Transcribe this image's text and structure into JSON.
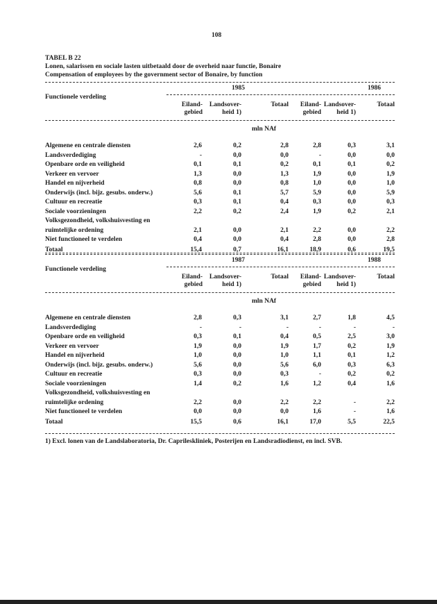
{
  "page_number": "108",
  "table_id": "TABEL B 22",
  "title_nl": "Lonen, salarissen en sociale lasten uitbetaald door de overheid naar functie, Bonaire",
  "title_en": "Compensation of employees by the government sector of Bonaire, by function",
  "row_header": "Functionele verdeling",
  "unit": "mln NAf",
  "col_headers": [
    "Eiland-",
    "gebied",
    "Landsover-",
    "heid 1)",
    "Totaal"
  ],
  "sections": [
    {
      "years": [
        "1985",
        "1986"
      ],
      "rows": [
        {
          "label": "Algemene en centrale diensten",
          "v": [
            "2,6",
            "0,2",
            "2,8",
            "2,8",
            "0,3",
            "3,1"
          ]
        },
        {
          "label": "Landsverdediging",
          "v": [
            "-",
            "0,0",
            "0,0",
            "-",
            "0,0",
            "0,0"
          ]
        },
        {
          "label": "Openbare orde en veiligheid",
          "v": [
            "0,1",
            "0,1",
            "0,2",
            "0,1",
            "0,1",
            "0,2"
          ]
        },
        {
          "label": "Verkeer en vervoer",
          "v": [
            "1,3",
            "0,0",
            "1,3",
            "1,9",
            "0,0",
            "1,9"
          ]
        },
        {
          "label": "Handel en nijverheid",
          "v": [
            "0,8",
            "0,0",
            "0,8",
            "1,0",
            "0,0",
            "1,0"
          ]
        },
        {
          "label": "Onderwijs (incl. bijz. gesubs. onderw.)",
          "v": [
            "5,6",
            "0,1",
            "5,7",
            "5,9",
            "0,0",
            "5,9"
          ]
        },
        {
          "label": "Cultuur en recreatie",
          "v": [
            "0,3",
            "0,1",
            "0,4",
            "0,3",
            "0,0",
            "0,3"
          ]
        },
        {
          "label": "Sociale voorzieningen",
          "v": [
            "2,2",
            "0,2",
            "2,4",
            "1,9",
            "0,2",
            "2,1"
          ]
        },
        {
          "label": "Volksgezondheid, volkshuisvesting en",
          "v": [
            "",
            "",
            "",
            "",
            "",
            ""
          ]
        },
        {
          "label": "ruimtelijke ordening",
          "v": [
            "2,1",
            "0,0",
            "2,1",
            "2,2",
            "0,0",
            "2,2"
          ]
        },
        {
          "label": "Niet functioneel te verdelen",
          "v": [
            "0,4",
            "0,0",
            "0,4",
            "2,8",
            "0,0",
            "2,8"
          ]
        }
      ],
      "total": {
        "label": "Totaal",
        "v": [
          "15,4",
          "0,7",
          "16,1",
          "18,9",
          "0,6",
          "19,5"
        ]
      }
    },
    {
      "years": [
        "1987",
        "1988"
      ],
      "rows": [
        {
          "label": "Algemene en centrale diensten",
          "v": [
            "2,8",
            "0,3",
            "3,1",
            "2,7",
            "1,8",
            "4,5"
          ]
        },
        {
          "label": "Landsverdediging",
          "v": [
            "-",
            "-",
            "-",
            "-",
            "-",
            "-"
          ]
        },
        {
          "label": "Openbare orde en veiligheid",
          "v": [
            "0,3",
            "0,1",
            "0,4",
            "0,5",
            "2,5",
            "3,0"
          ]
        },
        {
          "label": "Verkeer en vervoer",
          "v": [
            "1,9",
            "0,0",
            "1,9",
            "1,7",
            "0,2",
            "1,9"
          ]
        },
        {
          "label": "Handel en nijverheid",
          "v": [
            "1,0",
            "0,0",
            "1,0",
            "1,1",
            "0,1",
            "1,2"
          ]
        },
        {
          "label": "Onderwijs (incl. bijz. gesubs. onderw.)",
          "v": [
            "5,6",
            "0,0",
            "5,6",
            "6,0",
            "0,3",
            "6,3"
          ]
        },
        {
          "label": "Cultuur en recreatie",
          "v": [
            "0,3",
            "0,0",
            "0,3",
            "-",
            "0,2",
            "0,2"
          ]
        },
        {
          "label": "Sociale voorzieningen",
          "v": [
            "1,4",
            "0,2",
            "1,6",
            "1,2",
            "0,4",
            "1,6"
          ]
        },
        {
          "label": "Volksgezondheid, volkshuisvesting en",
          "v": [
            "",
            "",
            "",
            "",
            "",
            ""
          ]
        },
        {
          "label": "ruimtelijke ordening",
          "v": [
            "2,2",
            "0,0",
            "2,2",
            "2,2",
            "-",
            "2,2"
          ]
        },
        {
          "label": "Niet functioneel te verdelen",
          "v": [
            "0,0",
            "0,0",
            "0,0",
            "1,6",
            "-",
            "1,6"
          ]
        }
      ],
      "total": {
        "label": "Totaal",
        "v": [
          "15,5",
          "0,6",
          "16,1",
          "17,0",
          "5,5",
          "22,5"
        ]
      }
    }
  ],
  "footnote": "1) Excl. lonen van de Landslaboratoria, Dr. Caprileskliniek, Posterijen en Landsradiodienst, en incl. SVB."
}
